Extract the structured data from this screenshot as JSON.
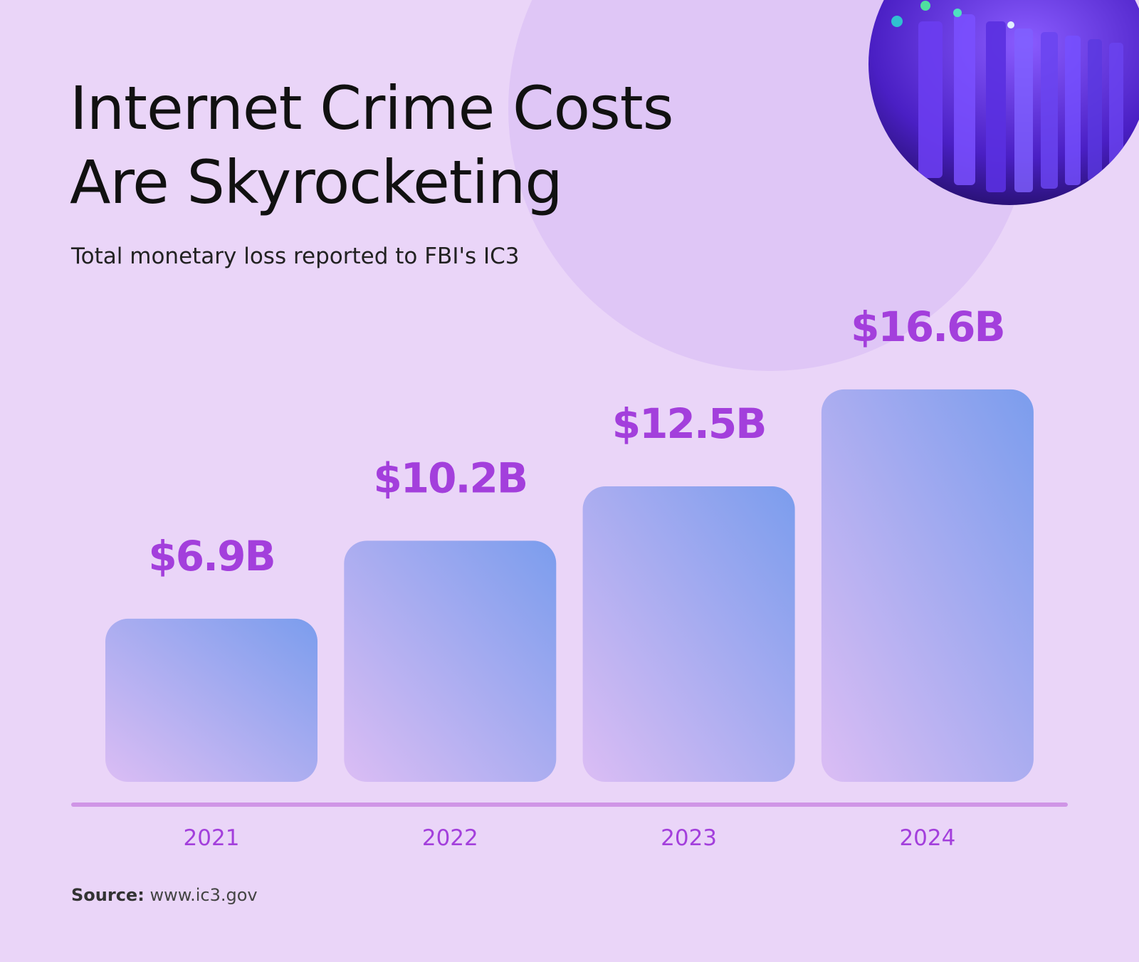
{
  "chart_data": {
    "type": "bar",
    "title": "Internet Crime Costs Are Skyrocketing",
    "subtitle": "Total monetary loss reported to FBI's IC3",
    "categories": [
      "2021",
      "2022",
      "2023",
      "2024"
    ],
    "values": [
      6.9,
      10.2,
      12.5,
      16.6
    ],
    "value_labels": [
      "$6.9B",
      "$10.2B",
      "$12.5B",
      "$16.6B"
    ],
    "gradient": [
      "#7b9ded",
      "#dbbdf4"
    ],
    "label_color": "#a33fdc",
    "source_label": "Source:",
    "source": "www.ic3.gov"
  }
}
